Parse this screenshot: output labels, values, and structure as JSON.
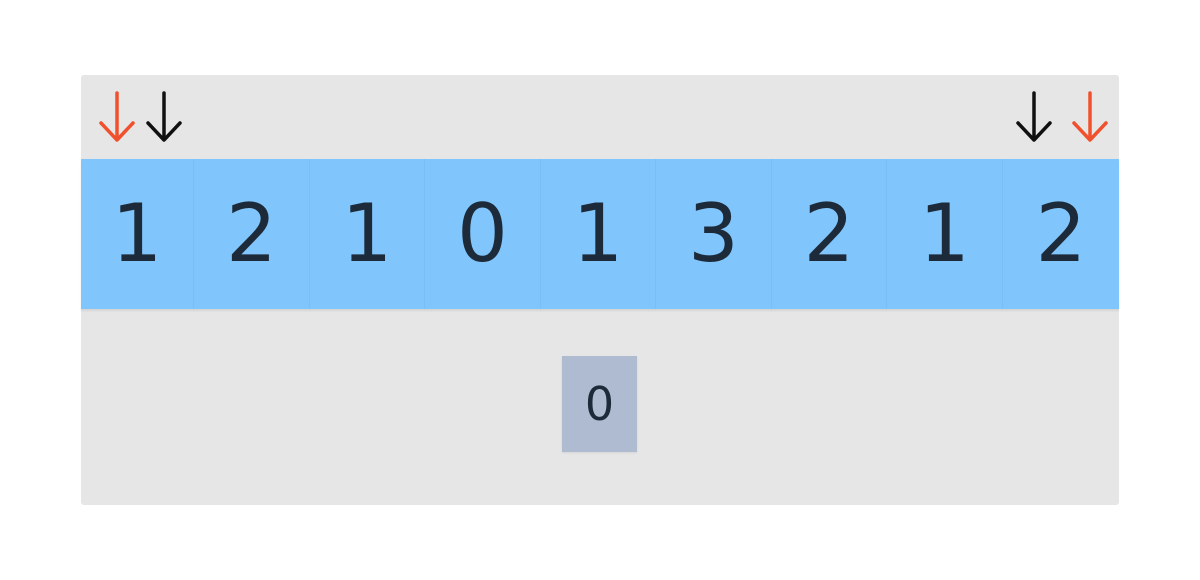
{
  "array": {
    "values": [
      "1",
      "2",
      "1",
      "0",
      "1",
      "3",
      "2",
      "1",
      "2"
    ]
  },
  "pointers": {
    "outer_color": "#f0502d",
    "inner_color": "#111111"
  },
  "result": {
    "value": "0"
  },
  "colors": {
    "array_bg": "#80c6fc",
    "panel_bg": "#e6e6e6",
    "result_bg": "#aebbd0"
  }
}
